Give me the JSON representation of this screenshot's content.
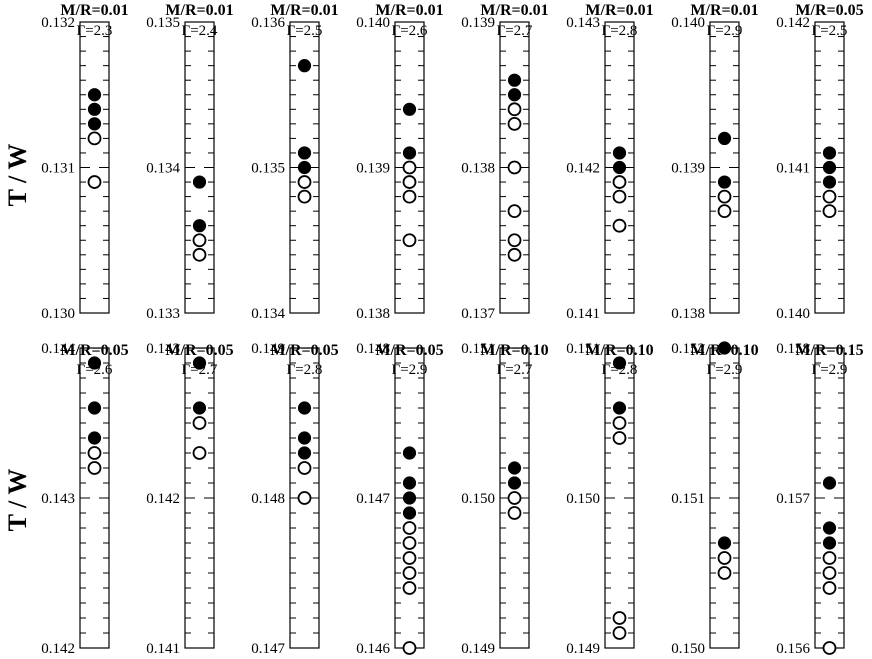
{
  "ylabel": "T / W",
  "chart_data": [
    {
      "type": "scatter",
      "title": "M/R=0.01",
      "subtitle": "Γ=2.3",
      "ylim": [
        0.13,
        0.132
      ],
      "yticks": [
        "0.132",
        "0.131",
        "0.130"
      ],
      "filled": [
        0.1315,
        0.1314,
        0.1313
      ],
      "open": [
        0.1312,
        0.1309
      ]
    },
    {
      "type": "scatter",
      "title": "M/R=0.01",
      "subtitle": "Γ=2.4",
      "ylim": [
        0.133,
        0.135
      ],
      "yticks": [
        "0.135",
        "0.134",
        "0.133"
      ],
      "filled": [
        0.1339,
        0.1336
      ],
      "open": [
        0.1335,
        0.1334
      ]
    },
    {
      "type": "scatter",
      "title": "M/R=0.01",
      "subtitle": "Γ=2.5",
      "ylim": [
        0.134,
        0.136
      ],
      "yticks": [
        "0.136",
        "0.135",
        "0.134"
      ],
      "filled": [
        0.1357,
        0.1351,
        0.135
      ],
      "open": [
        0.1349,
        0.1348
      ]
    },
    {
      "type": "scatter",
      "title": "M/R=0.01",
      "subtitle": "Γ=2.6",
      "ylim": [
        0.138,
        0.14
      ],
      "yticks": [
        "0.140",
        "0.139",
        "0.138"
      ],
      "filled": [
        0.1394,
        0.1391
      ],
      "open": [
        0.139,
        0.1389,
        0.1388,
        0.1385
      ]
    },
    {
      "type": "scatter",
      "title": "M/R=0.01",
      "subtitle": "Γ=2.7",
      "ylim": [
        0.137,
        0.139
      ],
      "yticks": [
        "0.139",
        "0.138",
        "0.137"
      ],
      "filled": [
        0.1386,
        0.1385
      ],
      "open": [
        0.1384,
        0.1383,
        0.138,
        0.1377,
        0.1375,
        0.1374
      ]
    },
    {
      "type": "scatter",
      "title": "M/R=0.01",
      "subtitle": "Γ=2.8",
      "ylim": [
        0.141,
        0.143
      ],
      "yticks": [
        "0.143",
        "0.142",
        "0.141"
      ],
      "filled": [
        0.1421,
        0.142
      ],
      "open": [
        0.1419,
        0.1418,
        0.1416
      ]
    },
    {
      "type": "scatter",
      "title": "M/R=0.01",
      "subtitle": "Γ=2.9",
      "ylim": [
        0.138,
        0.14
      ],
      "yticks": [
        "0.140",
        "0.139",
        "0.138"
      ],
      "filled": [
        0.1392,
        0.1389
      ],
      "open": [
        0.1388,
        0.1387
      ]
    },
    {
      "type": "scatter",
      "title": "M/R=0.05",
      "subtitle": "Γ=2.5",
      "ylim": [
        0.14,
        0.142
      ],
      "yticks": [
        "0.142",
        "0.141",
        "0.140"
      ],
      "filled": [
        0.1411,
        0.141,
        0.1409
      ],
      "open": [
        0.1408,
        0.1407
      ]
    },
    {
      "type": "scatter",
      "title": "M/R=0.05",
      "subtitle": "Γ=2.6",
      "ylim": [
        0.142,
        0.144
      ],
      "yticks": [
        "0.144",
        "0.143",
        "0.142"
      ],
      "filled": [
        0.1439,
        0.1436,
        0.1434
      ],
      "open": [
        0.1433,
        0.1432
      ]
    },
    {
      "type": "scatter",
      "title": "M/R=0.05",
      "subtitle": "Γ=2.7",
      "ylim": [
        0.141,
        0.143
      ],
      "yticks": [
        "0.143",
        "0.142",
        "0.141"
      ],
      "filled": [
        0.1429,
        0.1426
      ],
      "open": [
        0.1425,
        0.1423
      ]
    },
    {
      "type": "scatter",
      "title": "M/R=0.05",
      "subtitle": "Γ=2.8",
      "ylim": [
        0.147,
        0.149
      ],
      "yticks": [
        "0.149",
        "0.148",
        "0.147"
      ],
      "filled": [
        0.1486,
        0.1484,
        0.1483
      ],
      "open": [
        0.1482,
        0.148
      ]
    },
    {
      "type": "scatter",
      "title": "M/R=0.05",
      "subtitle": "Γ=2.9",
      "ylim": [
        0.146,
        0.148
      ],
      "yticks": [
        "0.148",
        "0.147",
        "0.146"
      ],
      "filled": [
        0.1473,
        0.1471,
        0.147,
        0.1469
      ],
      "open": [
        0.1468,
        0.1467,
        0.1466,
        0.1465,
        0.1464,
        0.146
      ]
    },
    {
      "type": "scatter",
      "title": "M/R=0.10",
      "subtitle": "Γ=2.7",
      "ylim": [
        0.149,
        0.151
      ],
      "yticks": [
        "0.151",
        "0.150",
        "0.149"
      ],
      "filled": [
        0.1502,
        0.1501
      ],
      "open": [
        0.15,
        0.1499
      ]
    },
    {
      "type": "scatter",
      "title": "M/R=0.10",
      "subtitle": "Γ=2.8",
      "ylim": [
        0.149,
        0.151
      ],
      "yticks": [
        "0.151",
        "0.150",
        "0.149"
      ],
      "filled": [
        0.1509,
        0.1506
      ],
      "open": [
        0.1505,
        0.1504,
        0.1492,
        0.1491
      ]
    },
    {
      "type": "scatter",
      "title": "M/R=0.10",
      "subtitle": "Γ=2.9",
      "ylim": [
        0.15,
        0.152
      ],
      "yticks": [
        "0.152",
        "0.151",
        "0.150"
      ],
      "filled": [
        0.152,
        0.1507
      ],
      "open": [
        0.1506,
        0.1505
      ]
    },
    {
      "type": "scatter",
      "title": "M/R=0.15",
      "subtitle": "Γ=2.9",
      "ylim": [
        0.156,
        0.158
      ],
      "yticks": [
        "0.158",
        "0.157",
        "0.156"
      ],
      "filled": [
        0.1571,
        0.1568,
        0.1567
      ],
      "open": [
        0.1566,
        0.1565,
        0.1564,
        0.156
      ]
    }
  ]
}
